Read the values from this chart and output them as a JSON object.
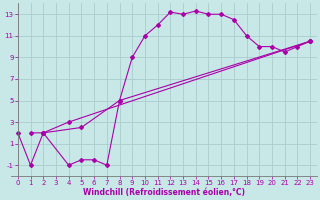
{
  "title": "",
  "xlabel": "Windchill (Refroidissement éolien,°C)",
  "bg_color": "#c8e8e8",
  "grid_color": "#aacccc",
  "line_color": "#aa00aa",
  "xlim": [
    -0.5,
    23.5
  ],
  "ylim": [
    -2,
    14
  ],
  "xticks": [
    0,
    1,
    2,
    3,
    4,
    5,
    6,
    7,
    8,
    9,
    10,
    11,
    12,
    13,
    14,
    15,
    16,
    17,
    18,
    19,
    20,
    21,
    22,
    23
  ],
  "yticks": [
    -1,
    1,
    3,
    5,
    7,
    9,
    11,
    13
  ],
  "line1_x": [
    0,
    1,
    2,
    4,
    5,
    6,
    7,
    8,
    9,
    10,
    11,
    12,
    13,
    14,
    15,
    16,
    17,
    18,
    19,
    20,
    21,
    22,
    23
  ],
  "line1_y": [
    2,
    -1,
    2,
    -1,
    -0.5,
    -0.5,
    -1,
    5,
    9,
    11,
    12,
    13.2,
    13,
    13.3,
    13,
    13,
    12.5,
    11,
    10,
    10,
    9.5,
    10,
    10.5
  ],
  "line2_x": [
    1,
    2,
    4,
    23
  ],
  "line2_y": [
    2,
    2,
    3,
    10.5
  ],
  "line3_x": [
    2,
    5,
    8,
    23
  ],
  "line3_y": [
    2,
    2.5,
    5,
    10.5
  ],
  "tick_fontsize": 5.0,
  "xlabel_fontsize": 5.5
}
